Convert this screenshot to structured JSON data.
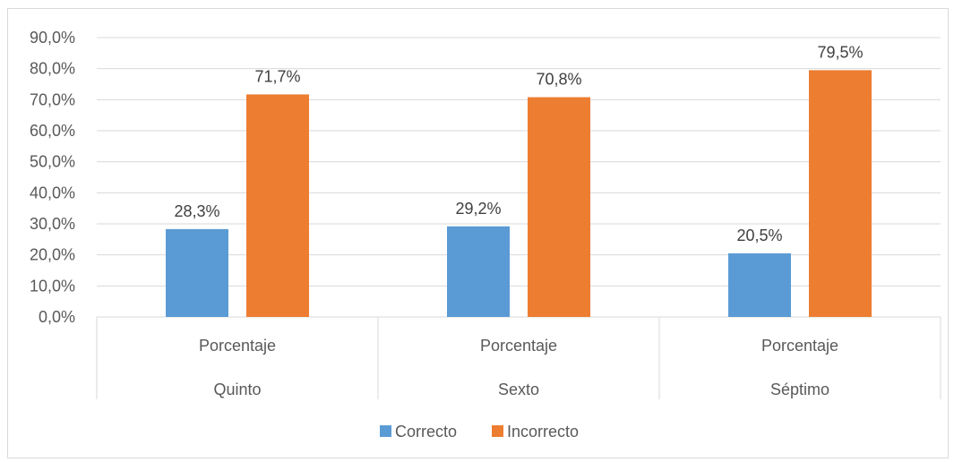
{
  "chart_data": {
    "type": "bar",
    "title": "",
    "xlabel": "",
    "ylabel": "",
    "ylim": [
      0,
      90
    ],
    "yticks": [
      0,
      10,
      20,
      30,
      40,
      50,
      60,
      70,
      80,
      90
    ],
    "ytick_labels": [
      "0,0%",
      "10,0%",
      "20,0%",
      "30,0%",
      "40,0%",
      "50,0%",
      "60,0%",
      "70,0%",
      "80,0%",
      "90,0%"
    ],
    "grid": true,
    "legend_position": "bottom",
    "categories": [
      {
        "group": "Quinto",
        "label": "Porcentaje"
      },
      {
        "group": "Sexto",
        "label": "Porcentaje"
      },
      {
        "group": "Séptimo",
        "label": "Porcentaje"
      }
    ],
    "series": [
      {
        "name": "Correcto",
        "color": "#5b9bd5",
        "values": [
          28.3,
          29.2,
          20.5
        ],
        "labels": [
          "28,3%",
          "29,2%",
          "20,5%"
        ]
      },
      {
        "name": "Incorrecto",
        "color": "#ed7d31",
        "values": [
          71.7,
          70.8,
          79.5
        ],
        "labels": [
          "71,7%",
          "70,8%",
          "79,5%"
        ]
      }
    ]
  }
}
